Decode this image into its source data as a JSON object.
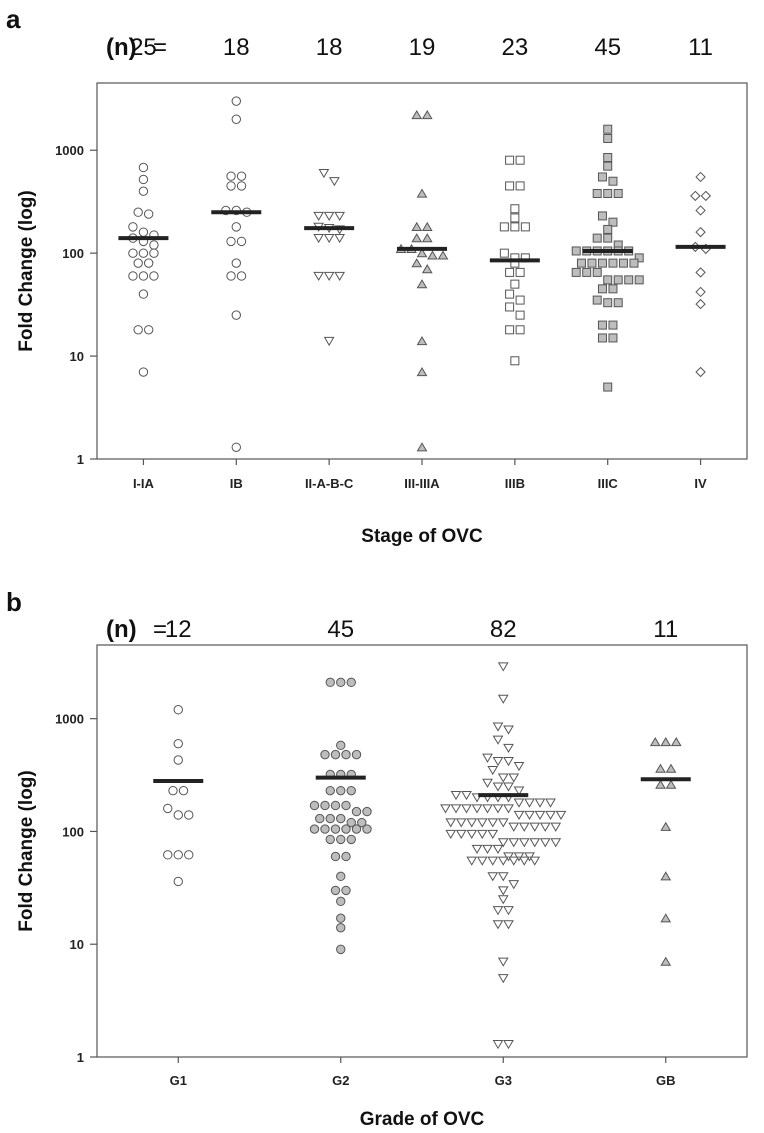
{
  "chart_data": [
    {
      "panel": "a",
      "type": "scatter",
      "n_prefix": "(n)",
      "n_equals": "=",
      "xlabel": "Stage of OVC",
      "ylabel": "Fold Change (log)",
      "yscale": "log",
      "ylim": [
        1,
        4500
      ],
      "yticks": [
        1,
        10,
        100,
        1000
      ],
      "categories": [
        {
          "label": "I-IA",
          "n": "25",
          "marker": "circle",
          "fill": "#ffffff",
          "median": 140,
          "values": [
            680,
            520,
            400,
            250,
            240,
            180,
            160,
            150,
            140,
            130,
            120,
            100,
            100,
            100,
            80,
            80,
            60,
            60,
            60,
            40,
            18,
            18,
            7
          ]
        },
        {
          "label": "IB",
          "n": "18",
          "marker": "circle",
          "fill": "#ffffff",
          "median": 250,
          "values": [
            3000,
            2000,
            560,
            560,
            450,
            450,
            260,
            260,
            250,
            180,
            130,
            130,
            80,
            60,
            60,
            25,
            1.3
          ]
        },
        {
          "label": "II-A-B-C",
          "n": "18",
          "marker": "triangle-down",
          "fill": "#ffffff",
          "median": 175,
          "values": [
            600,
            500,
            230,
            230,
            230,
            180,
            175,
            170,
            140,
            140,
            140,
            60,
            60,
            60,
            14
          ]
        },
        {
          "label": "III-IIIA",
          "n": "19",
          "marker": "triangle-up",
          "fill": "#bdbdbd",
          "median": 110,
          "values": [
            2200,
            2200,
            380,
            180,
            180,
            140,
            140,
            110,
            110,
            100,
            95,
            95,
            80,
            70,
            50,
            14,
            7,
            1.3
          ]
        },
        {
          "label": "IIIB",
          "n": "23",
          "marker": "square",
          "fill": "#ffffff",
          "median": 85,
          "values": [
            800,
            800,
            450,
            450,
            270,
            220,
            180,
            180,
            180,
            100,
            90,
            90,
            80,
            65,
            65,
            50,
            40,
            35,
            30,
            25,
            18,
            18,
            9
          ]
        },
        {
          "label": "IIIC",
          "n": "45",
          "marker": "square",
          "fill": "#bdbdbd",
          "median": 105,
          "values": [
            1600,
            1300,
            850,
            700,
            550,
            500,
            380,
            380,
            380,
            230,
            200,
            170,
            140,
            140,
            120,
            105,
            105,
            105,
            105,
            105,
            105,
            90,
            80,
            80,
            80,
            80,
            80,
            80,
            65,
            65,
            65,
            55,
            55,
            55,
            55,
            45,
            45,
            35,
            33,
            33,
            20,
            20,
            15,
            15,
            5
          ]
        },
        {
          "label": "IV",
          "n": "11",
          "marker": "diamond",
          "fill": "#ffffff",
          "median": 115,
          "values": [
            550,
            360,
            360,
            260,
            160,
            115,
            110,
            65,
            42,
            32,
            7
          ]
        }
      ]
    },
    {
      "panel": "b",
      "type": "scatter",
      "n_prefix": "(n)",
      "n_equals": "=",
      "xlabel": "Grade of OVC",
      "ylabel": "Fold Change (log)",
      "yscale": "log",
      "ylim": [
        1,
        4500
      ],
      "yticks": [
        1,
        10,
        100,
        1000
      ],
      "categories": [
        {
          "label": "G1",
          "n": "12",
          "marker": "circle",
          "fill": "#ffffff",
          "median": 280,
          "values": [
            1200,
            600,
            430,
            230,
            230,
            160,
            140,
            140,
            62,
            62,
            62,
            36
          ]
        },
        {
          "label": "G2",
          "n": "45",
          "marker": "circle",
          "fill": "#bdbdbd",
          "median": 300,
          "values": [
            2100,
            2100,
            2100,
            580,
            480,
            480,
            480,
            480,
            320,
            320,
            320,
            230,
            230,
            230,
            170,
            170,
            170,
            170,
            150,
            150,
            130,
            130,
            130,
            120,
            120,
            105,
            105,
            105,
            105,
            105,
            105,
            85,
            85,
            85,
            60,
            60,
            40,
            30,
            30,
            24,
            17,
            14,
            9
          ]
        },
        {
          "label": "G3",
          "n": "82",
          "marker": "triangle-down",
          "fill": "#ffffff",
          "median": 210,
          "values": [
            2900,
            1500,
            850,
            800,
            650,
            550,
            450,
            420,
            420,
            380,
            350,
            300,
            300,
            270,
            250,
            250,
            230,
            210,
            210,
            200,
            200,
            200,
            200,
            180,
            180,
            180,
            180,
            160,
            160,
            160,
            160,
            160,
            160,
            160,
            140,
            140,
            140,
            140,
            140,
            120,
            120,
            120,
            120,
            120,
            120,
            110,
            110,
            110,
            110,
            110,
            95,
            95,
            95,
            95,
            95,
            80,
            80,
            80,
            80,
            80,
            80,
            70,
            70,
            70,
            60,
            60,
            60,
            55,
            55,
            55,
            55,
            55,
            55,
            55,
            40,
            40,
            34,
            30,
            25,
            20,
            20,
            15,
            15,
            7,
            5,
            1.3,
            1.3
          ]
        },
        {
          "label": "GB",
          "n": "11",
          "marker": "triangle-up",
          "fill": "#bdbdbd",
          "median": 290,
          "values": [
            620,
            620,
            620,
            360,
            360,
            260,
            260,
            110,
            40,
            17,
            7
          ]
        }
      ]
    }
  ]
}
